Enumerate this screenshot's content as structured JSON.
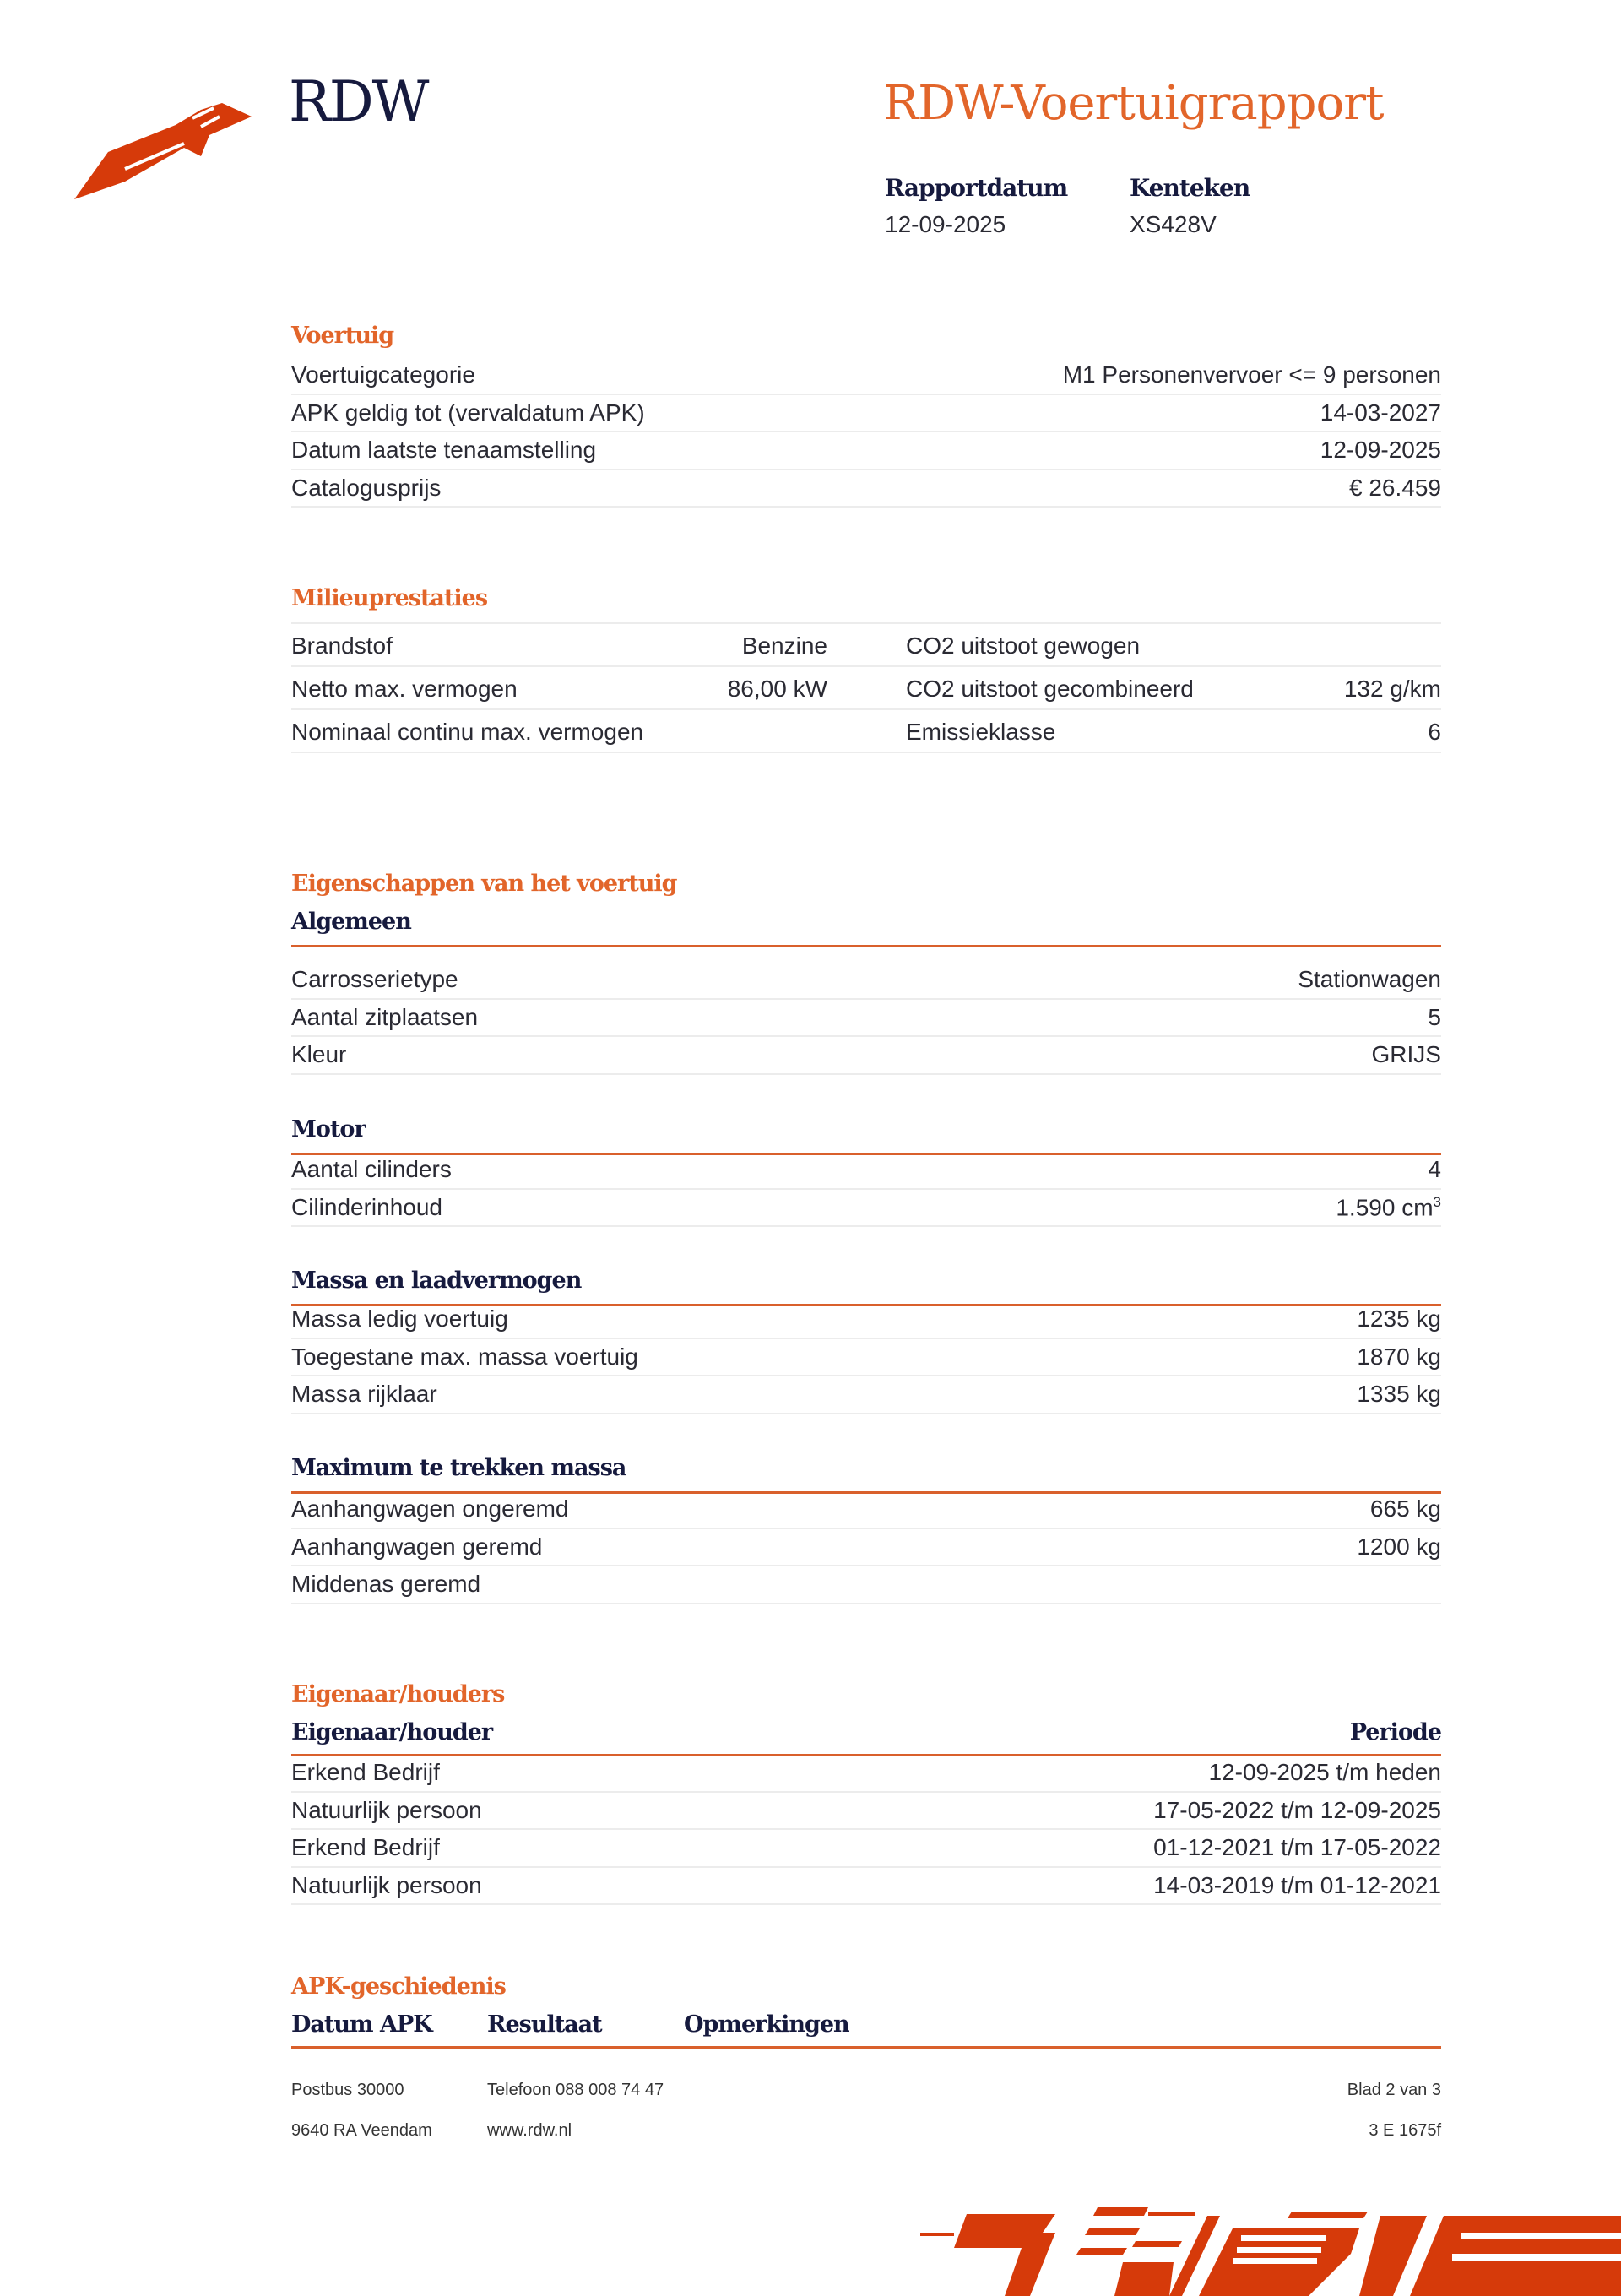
{
  "header": {
    "logo_text": "RDW",
    "title": "RDW-Voertuigrapport",
    "report_date_label": "Rapportdatum",
    "report_date": "12-09-2025",
    "plate_label": "Kenteken",
    "plate": "XS428V"
  },
  "voertuig": {
    "title": "Voertuig",
    "rows": [
      {
        "label": "Voertuigcategorie",
        "value": "M1 Personenvervoer <= 9 personen"
      },
      {
        "label": "APK geldig tot (vervaldatum APK)",
        "value": "14-03-2027"
      },
      {
        "label": "Datum laatste tenaamstelling",
        "value": "12-09-2025"
      },
      {
        "label": "Catalogusprijs",
        "value": "€ 26.459"
      }
    ]
  },
  "milieu": {
    "title": "Milieuprestaties",
    "rows": [
      {
        "l1": "Brandstof",
        "v1": "Benzine",
        "l2": "CO2 uitstoot gewogen",
        "v2": ""
      },
      {
        "l1": "Netto max. vermogen",
        "v1": "86,00 kW",
        "l2": "CO2 uitstoot gecombineerd",
        "v2": "132 g/km"
      },
      {
        "l1": "Nominaal continu max. vermogen",
        "v1": "",
        "l2": "Emissieklasse",
        "v2": "6"
      }
    ]
  },
  "eigenschappen": {
    "title": "Eigenschappen van het voertuig",
    "algemeen": {
      "title": "Algemeen",
      "rows": [
        {
          "label": "Carrosserietype",
          "value": "Stationwagen"
        },
        {
          "label": "Aantal zitplaatsen",
          "value": "5"
        },
        {
          "label": "Kleur",
          "value": "GRIJS"
        }
      ]
    },
    "motor": {
      "title": "Motor",
      "rows": [
        {
          "label": "Aantal cilinders",
          "value": "4"
        },
        {
          "label": "Cilinderinhoud",
          "value": "1.590 cm",
          "unit_sup": "3"
        }
      ]
    },
    "massa": {
      "title": "Massa en laadvermogen",
      "rows": [
        {
          "label": "Massa ledig voertuig",
          "value": "1235 kg"
        },
        {
          "label": "Toegestane max. massa voertuig",
          "value": "1870 kg"
        },
        {
          "label": "Massa rijklaar",
          "value": "1335 kg"
        }
      ]
    },
    "trek": {
      "title": "Maximum te trekken massa",
      "rows": [
        {
          "label": "Aanhangwagen ongeremd",
          "value": "665 kg"
        },
        {
          "label": "Aanhangwagen geremd",
          "value": "1200 kg"
        },
        {
          "label": "Middenas geremd",
          "value": ""
        }
      ]
    }
  },
  "eigenaar": {
    "title": "Eigenaar/houders",
    "col1": "Eigenaar/houder",
    "col2": "Periode",
    "rows": [
      {
        "label": "Erkend Bedrijf",
        "value": "12-09-2025 t/m heden"
      },
      {
        "label": "Natuurlijk persoon",
        "value": "17-05-2022 t/m 12-09-2025"
      },
      {
        "label": "Erkend Bedrijf",
        "value": "01-12-2021 t/m 17-05-2022"
      },
      {
        "label": "Natuurlijk persoon",
        "value": "14-03-2019 t/m 01-12-2021"
      }
    ]
  },
  "apk": {
    "title": "APK-geschiedenis",
    "col1": "Datum APK",
    "col2": "Resultaat",
    "col3": "Opmerkingen"
  },
  "footer": {
    "address1": "Postbus 30000",
    "address2": "9640 RA Veendam",
    "phone": "Telefoon 088 008 74 47",
    "web": "www.rdw.nl",
    "page": "Blad 2 van 3",
    "code": "3 E 1675f"
  },
  "colors": {
    "accent": "#e2652a",
    "navy": "#161a3e",
    "logo_red": "#d63a0a"
  }
}
